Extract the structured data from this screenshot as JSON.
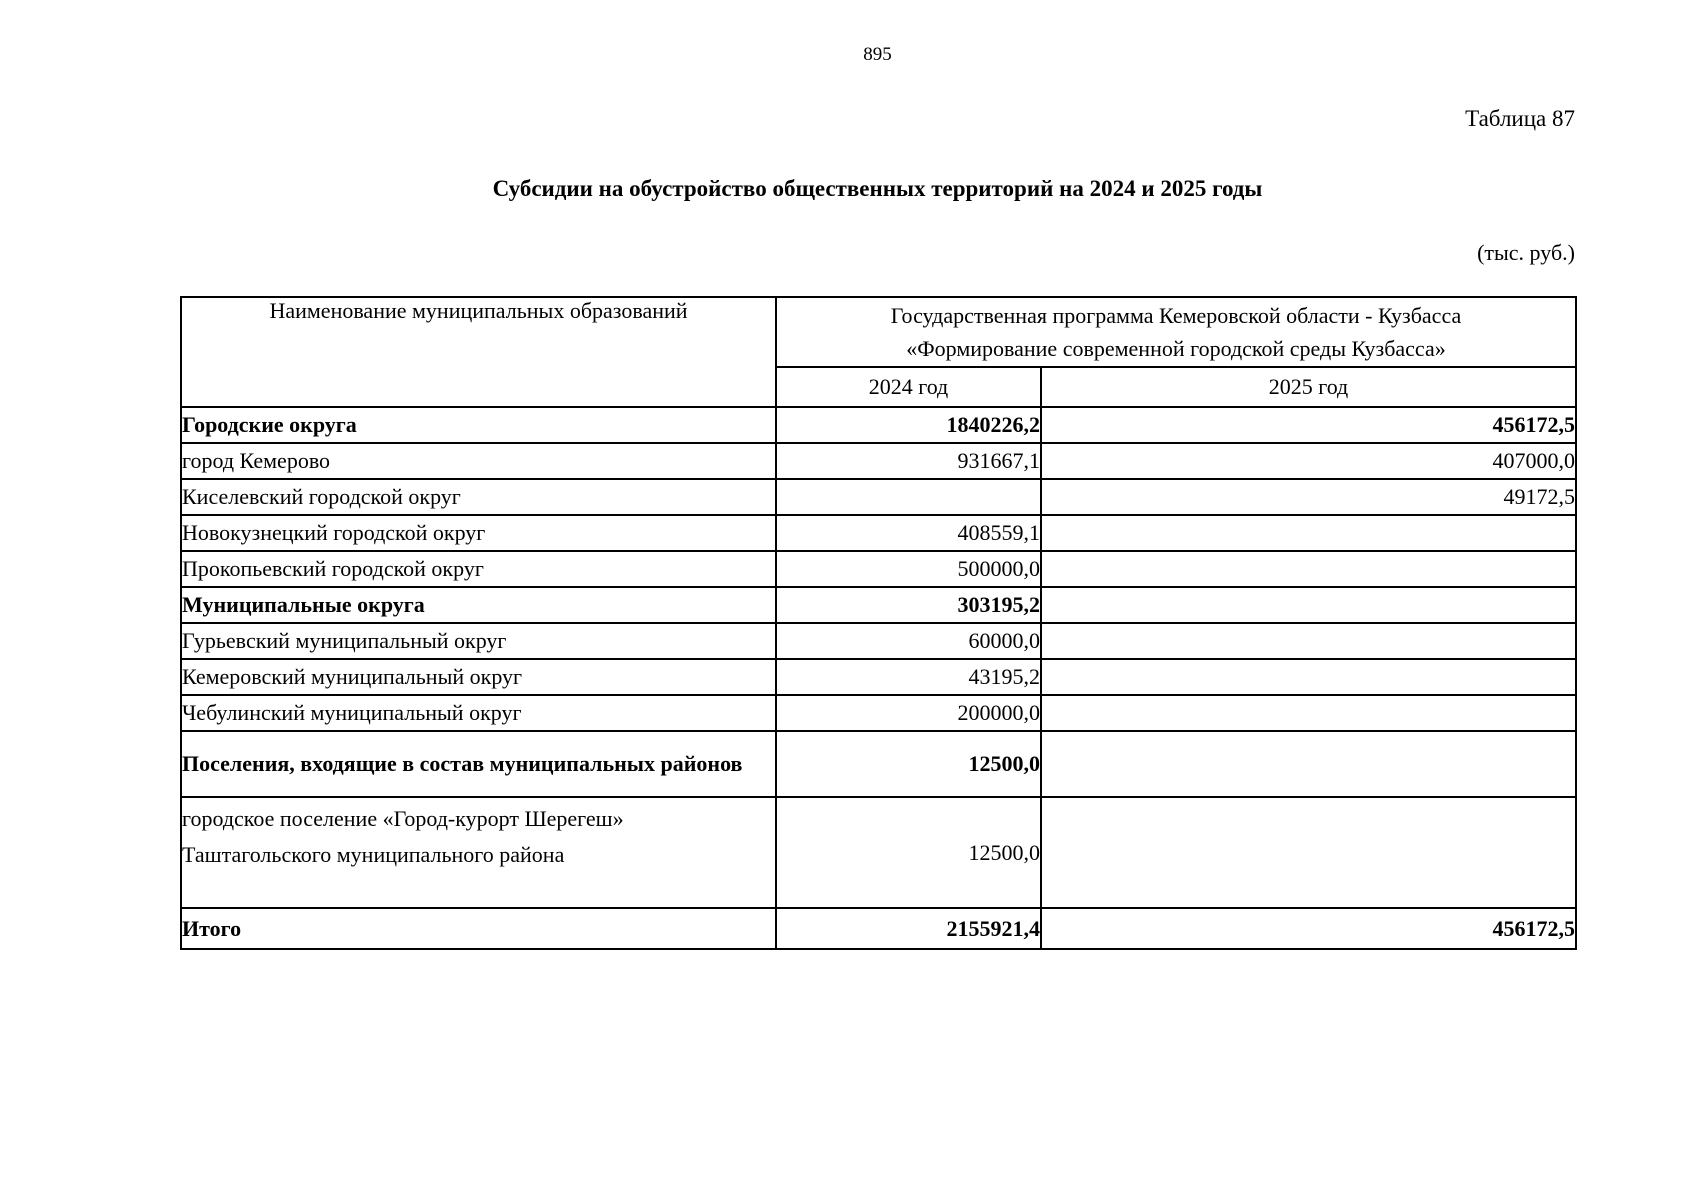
{
  "page": {
    "number": "895",
    "table_caption": "Таблица 87",
    "title": "Субсидии на обустройство общественных территорий на 2024 и 2025 годы",
    "unit_note": "(тыс. руб.)"
  },
  "table": {
    "name_header": "Наименование муниципальных образований",
    "program_header_line1": "Государственная программа Кемеровской области - Кузбасса",
    "program_header_line2": "«Формирование современной городской среды Кузбасса»",
    "year_2024": "2024 год",
    "year_2025": "2025 год",
    "rows": [
      {
        "label": "Городские округа",
        "y2024": "1840226,2",
        "y2025": "456172,5"
      },
      {
        "label": "город Кемерово",
        "y2024": "931667,1",
        "y2025": "407000,0"
      },
      {
        "label": "Киселевский городской округ",
        "y2024": "",
        "y2025": "49172,5"
      },
      {
        "label": "Новокузнецкий городской округ",
        "y2024": "408559,1",
        "y2025": ""
      },
      {
        "label": "Прокопьевский городской округ",
        "y2024": "500000,0",
        "y2025": ""
      },
      {
        "label": "Муниципальные округа",
        "y2024": "303195,2",
        "y2025": ""
      },
      {
        "label": "Гурьевский муниципальный округ",
        "y2024": "60000,0",
        "y2025": ""
      },
      {
        "label": "Кемеровский муниципальный округ",
        "y2024": "43195,2",
        "y2025": ""
      },
      {
        "label": "Чебулинский муниципальный округ",
        "y2024": "200000,0",
        "y2025": ""
      },
      {
        "label": "Поселения, входящие в состав муниципальных районов",
        "y2024": "12500,0",
        "y2025": ""
      },
      {
        "label": "городское поселение «Город-курорт Шерегеш» Таштагольского муниципального района",
        "y2024": "12500,0",
        "y2025": ""
      },
      {
        "label": "Итого",
        "y2024": "2155921,4",
        "y2025": "456172,5"
      }
    ]
  }
}
